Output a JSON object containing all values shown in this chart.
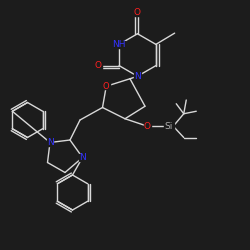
{
  "bg_color": "#1c1c1c",
  "bond_color": "#d8d8d8",
  "atom_colors": {
    "N": "#3333ff",
    "O": "#ff2020",
    "Si": "#b0b0b0",
    "C": "#d8d8d8"
  },
  "lw": 1.0
}
